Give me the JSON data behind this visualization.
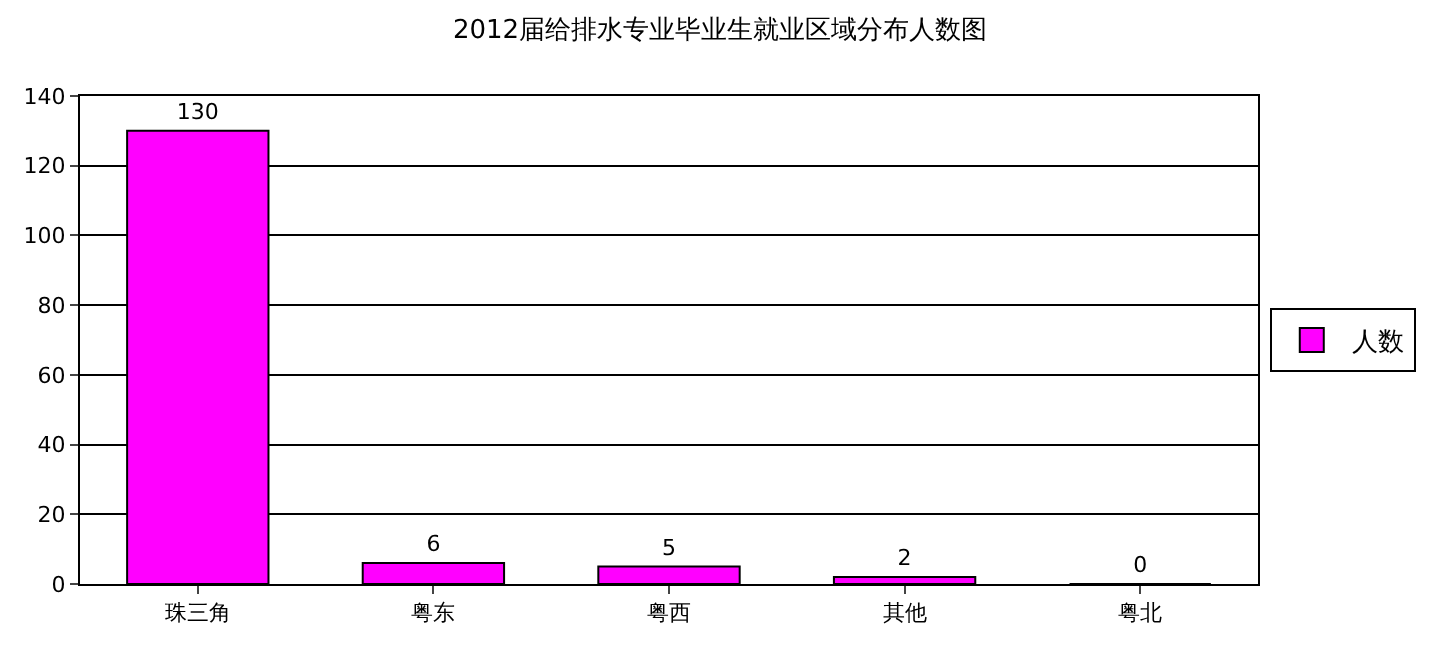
{
  "chart_data": {
    "type": "bar",
    "title": "2012届给排水专业毕业生就业区域分布人数图",
    "categories": [
      "珠三角",
      "粤东",
      "粤西",
      "其他",
      "粤北"
    ],
    "series": [
      {
        "name": "人数",
        "color": "#ff00ff",
        "values": [
          130,
          6,
          5,
          2,
          0
        ]
      }
    ],
    "ylim": [
      0,
      140
    ],
    "yticks": [
      0,
      20,
      40,
      60,
      80,
      100,
      120,
      140
    ],
    "grid": "y",
    "legend": "right",
    "data_labels": true
  }
}
